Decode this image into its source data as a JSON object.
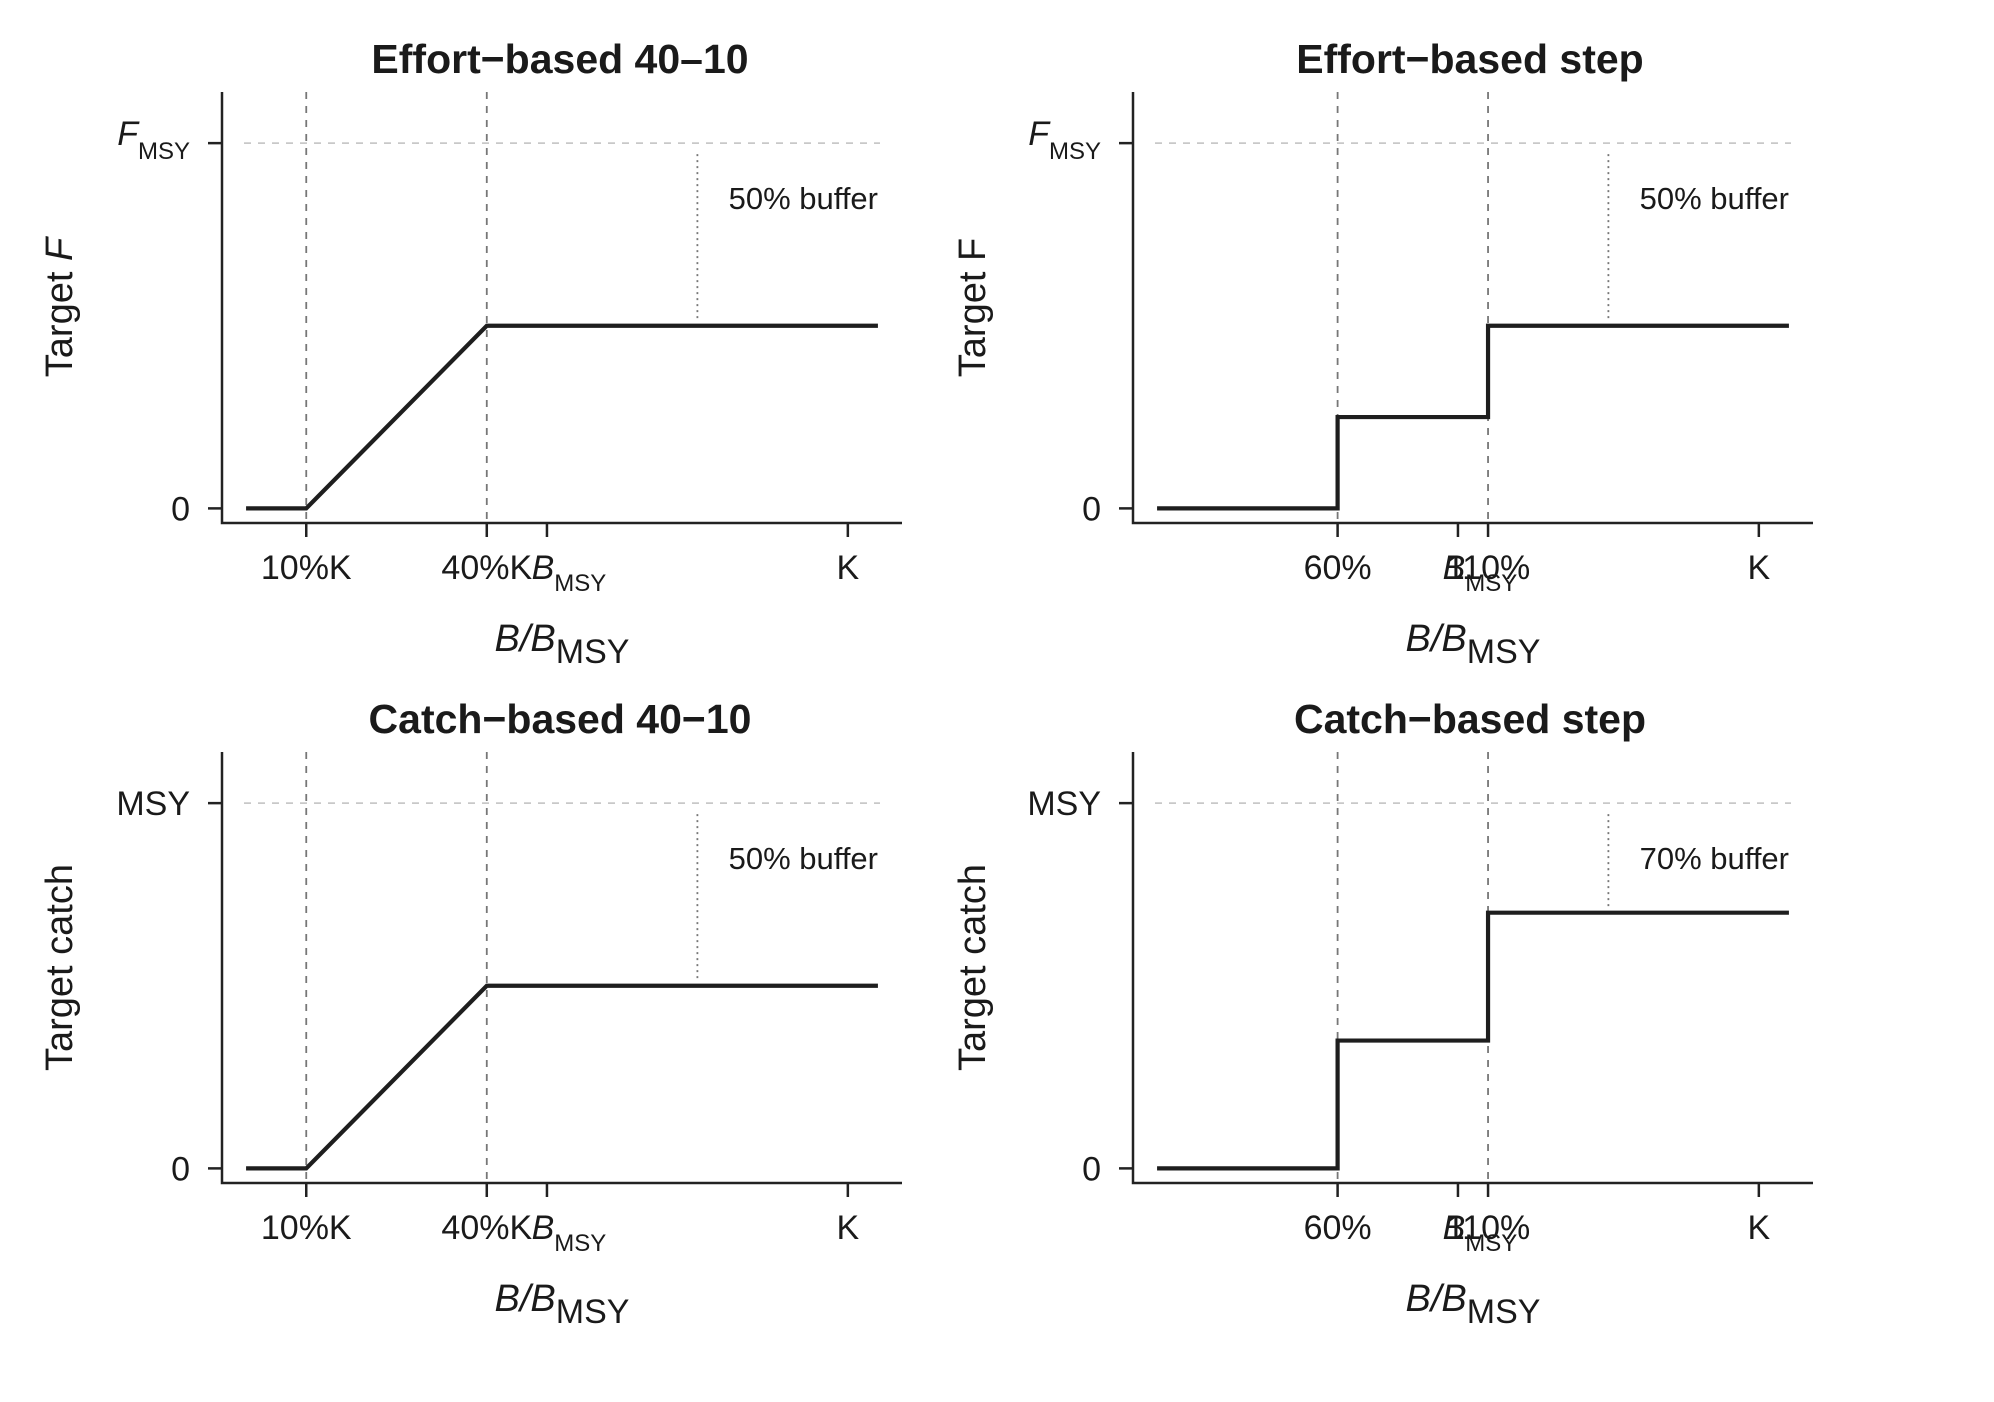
{
  "chart_data": [
    {
      "type": "line",
      "title": "Effort−based 40–10",
      "ylabel": {
        "main": "Target ",
        "italic": "F",
        "sub": ""
      },
      "xlabel": {
        "italic": "B/B",
        "sub": "MSY"
      },
      "y_ticks": [
        {
          "value": 0,
          "main": "0",
          "sub": "",
          "italic": false
        },
        {
          "value": 1,
          "main": "F",
          "sub": "MSY",
          "italic": true
        }
      ],
      "x_ticks": [
        {
          "value": 0.1,
          "main": "10%K",
          "sub": "",
          "italic": false
        },
        {
          "value": 0.4,
          "main": "40%K",
          "sub": "",
          "italic": false
        },
        {
          "value": 0.5,
          "main": "B",
          "sub": "MSY",
          "italic": true
        },
        {
          "value": 1.0,
          "main": "K",
          "sub": "",
          "italic": false
        }
      ],
      "vlines": [
        0.1,
        0.4
      ],
      "buffer_label": "50% buffer",
      "buffer_x": 0.75,
      "series": [
        {
          "x": [
            0.0,
            0.1,
            0.4,
            1.05
          ],
          "y": [
            0,
            0,
            0.5,
            0.5
          ],
          "step": false
        }
      ],
      "xlim": [
        -0.04,
        1.09
      ],
      "ylim": [
        -0.04,
        1.14
      ]
    },
    {
      "type": "line",
      "title": "Effort−based step",
      "ylabel": {
        "main": "Target F",
        "italic": "",
        "sub": ""
      },
      "xlabel": {
        "italic": "B/B",
        "sub": "MSY"
      },
      "y_ticks": [
        {
          "value": 0,
          "main": "0",
          "sub": "",
          "italic": false
        },
        {
          "value": 1,
          "main": "F",
          "sub": "MSY",
          "italic": true
        }
      ],
      "x_ticks": [
        {
          "value": 0.3,
          "main": "60%",
          "sub": "",
          "italic": false
        },
        {
          "value": 0.5,
          "main": "B",
          "sub": "MSY",
          "italic": true
        },
        {
          "value": 0.55,
          "main": "110%",
          "sub": "",
          "italic": false
        },
        {
          "value": 1.0,
          "main": "K",
          "sub": "",
          "italic": false
        }
      ],
      "vlines": [
        0.3,
        0.55
      ],
      "buffer_label": "50% buffer",
      "buffer_x": 0.75,
      "series": [
        {
          "x": [
            0.0,
            0.3,
            0.55,
            1.05
          ],
          "y": [
            0,
            0.25,
            0.5,
            0.5
          ],
          "step": true
        }
      ],
      "xlim": [
        -0.04,
        1.09
      ],
      "ylim": [
        -0.04,
        1.14
      ]
    },
    {
      "type": "line",
      "title": "Catch−based 40−10",
      "ylabel": {
        "main": "Target catch",
        "italic": "",
        "sub": ""
      },
      "xlabel": {
        "italic": "B/B",
        "sub": "MSY"
      },
      "y_ticks": [
        {
          "value": 0,
          "main": "0",
          "sub": "",
          "italic": false
        },
        {
          "value": 1,
          "main": "MSY",
          "sub": "",
          "italic": false
        }
      ],
      "x_ticks": [
        {
          "value": 0.1,
          "main": "10%K",
          "sub": "",
          "italic": false
        },
        {
          "value": 0.4,
          "main": "40%K",
          "sub": "",
          "italic": false
        },
        {
          "value": 0.5,
          "main": "B",
          "sub": "MSY",
          "italic": true
        },
        {
          "value": 1.0,
          "main": "K",
          "sub": "",
          "italic": false
        }
      ],
      "vlines": [
        0.1,
        0.4
      ],
      "buffer_label": "50% buffer",
      "buffer_x": 0.75,
      "series": [
        {
          "x": [
            0.0,
            0.1,
            0.4,
            1.05
          ],
          "y": [
            0,
            0,
            0.5,
            0.5
          ],
          "step": false
        }
      ],
      "xlim": [
        -0.04,
        1.09
      ],
      "ylim": [
        -0.04,
        1.14
      ]
    },
    {
      "type": "line",
      "title": "Catch−based step",
      "ylabel": {
        "main": "Target catch",
        "italic": "",
        "sub": ""
      },
      "xlabel": {
        "italic": "B/B",
        "sub": "MSY"
      },
      "y_ticks": [
        {
          "value": 0,
          "main": "0",
          "sub": "",
          "italic": false
        },
        {
          "value": 1,
          "main": "MSY",
          "sub": "",
          "italic": false
        }
      ],
      "x_ticks": [
        {
          "value": 0.3,
          "main": "60%",
          "sub": "",
          "italic": false
        },
        {
          "value": 0.5,
          "main": "B",
          "sub": "MSY",
          "italic": true
        },
        {
          "value": 0.55,
          "main": "110%",
          "sub": "",
          "italic": false
        },
        {
          "value": 1.0,
          "main": "K",
          "sub": "",
          "italic": false
        }
      ],
      "vlines": [
        0.3,
        0.55
      ],
      "buffer_label": "70% buffer",
      "buffer_x": 0.75,
      "series": [
        {
          "x": [
            0.0,
            0.3,
            0.55,
            1.05
          ],
          "y": [
            0,
            0.35,
            0.7,
            0.7
          ],
          "step": true
        }
      ],
      "xlim": [
        -0.04,
        1.09
      ],
      "ylim": [
        -0.04,
        1.14
      ]
    }
  ]
}
